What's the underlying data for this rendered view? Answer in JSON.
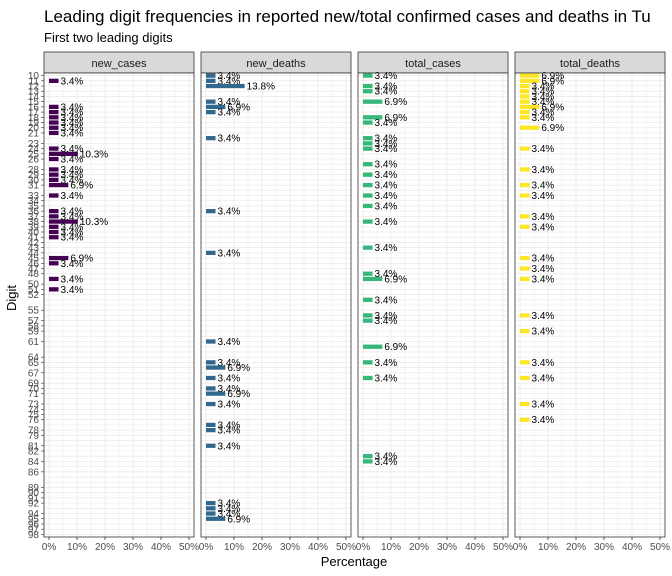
{
  "chart_data": {
    "type": "bar",
    "orientation": "horizontal",
    "title": "Leading digit frequencies in reported new/total confirmed cases and deaths in Tu",
    "subtitle": "First two leading digits",
    "xlabel": "Percentage",
    "ylabel": "Digit",
    "xlim": [
      0,
      50
    ],
    "x_ticks": [
      "0%",
      "10%",
      "20%",
      "30%",
      "40%",
      "50%"
    ],
    "grid": true,
    "categories": [
      "10",
      "11",
      "12",
      "13",
      "14",
      "15",
      "16",
      "17",
      "18",
      "19",
      "20",
      "21",
      "22",
      "23",
      "24",
      "25",
      "26",
      "27",
      "28",
      "29",
      "30",
      "31",
      "32",
      "33",
      "34",
      "35",
      "36",
      "37",
      "38",
      "39",
      "40",
      "41",
      "42",
      "43",
      "44",
      "45",
      "46",
      "47",
      "48",
      "49",
      "50",
      "51",
      "52",
      "53",
      "54",
      "55",
      "56",
      "57",
      "58",
      "59",
      "60",
      "61",
      "62",
      "63",
      "64",
      "65",
      "66",
      "67",
      "68",
      "69",
      "70",
      "71",
      "72",
      "73",
      "74",
      "75",
      "76",
      "77",
      "78",
      "79",
      "80",
      "81",
      "82",
      "83",
      "84",
      "85",
      "86",
      "87",
      "88",
      "89",
      "90",
      "91",
      "92",
      "93",
      "94",
      "95",
      "96",
      "97",
      "98"
    ],
    "y_tick_labels": [
      "10",
      "11",
      "12",
      "13",
      "14",
      "15",
      "16",
      "17",
      "18",
      "19",
      "20",
      "21",
      "23",
      "24",
      "25",
      "26",
      "28",
      "29",
      "30",
      "31",
      "33",
      "34",
      "35",
      "36",
      "37",
      "38",
      "39",
      "40",
      "41",
      "42",
      "43",
      "44",
      "45",
      "46",
      "47",
      "48",
      "50",
      "51",
      "52",
      "55",
      "57",
      "58",
      "59",
      "61",
      "64",
      "65",
      "67",
      "69",
      "70",
      "71",
      "73",
      "74",
      "75",
      "76",
      "78",
      "79",
      "81",
      "82",
      "84",
      "86",
      "89",
      "90",
      "91",
      "92",
      "94",
      "95",
      "96",
      "97",
      "98"
    ],
    "series": [
      {
        "name": "new_cases",
        "color": "#440154",
        "values": {
          "11": 3.4,
          "16": 3.4,
          "17": 3.4,
          "18": 3.4,
          "19": 3.4,
          "20": 3.4,
          "21": 3.4,
          "24": 3.4,
          "25": 10.3,
          "26": 3.4,
          "28": 3.4,
          "29": 3.4,
          "30": 3.4,
          "31": 6.9,
          "33": 3.4,
          "36": 3.4,
          "37": 3.4,
          "38": 10.3,
          "39": 3.4,
          "40": 3.4,
          "41": 3.4,
          "45": 6.9,
          "46": 3.4,
          "49": 3.4,
          "51": 3.4
        }
      },
      {
        "name": "new_deaths",
        "color": "#31688e",
        "values": {
          "10": 3.4,
          "11": 3.4,
          "12": 13.8,
          "15": 3.4,
          "16": 6.9,
          "17": 3.4,
          "22": 3.4,
          "36": 3.4,
          "44": 3.4,
          "61": 3.4,
          "65": 3.4,
          "66": 6.9,
          "68": 3.4,
          "70": 3.4,
          "71": 6.9,
          "73": 3.4,
          "77": 3.4,
          "78": 3.4,
          "81": 3.4,
          "92": 3.4,
          "93": 3.4,
          "94": 3.4,
          "95": 6.9
        }
      },
      {
        "name": "total_cases",
        "color": "#35b779",
        "values": {
          "10": 3.4,
          "12": 3.4,
          "13": 3.4,
          "15": 6.9,
          "18": 6.9,
          "19": 3.4,
          "22": 3.4,
          "23": 3.4,
          "24": 3.4,
          "27": 3.4,
          "29": 3.4,
          "31": 3.4,
          "33": 3.4,
          "35": 3.4,
          "38": 3.4,
          "43": 3.4,
          "48": 3.4,
          "49": 6.9,
          "53": 3.4,
          "56": 3.4,
          "57": 3.4,
          "62": 6.9,
          "65": 3.4,
          "68": 3.4,
          "83": 3.4,
          "84": 3.4
        }
      },
      {
        "name": "total_deaths",
        "color": "#fde725",
        "values": {
          "10": 6.9,
          "11": 6.9,
          "12": 3.4,
          "13": 3.4,
          "14": 3.4,
          "15": 3.4,
          "16": 6.9,
          "17": 3.4,
          "18": 3.4,
          "20": 6.9,
          "24": 3.4,
          "28": 3.4,
          "31": 3.4,
          "33": 3.4,
          "37": 3.4,
          "39": 3.4,
          "45": 3.4,
          "47": 3.4,
          "49": 3.4,
          "56": 3.4,
          "59": 3.4,
          "65": 3.4,
          "68": 3.4,
          "73": 3.4,
          "76": 3.4
        }
      }
    ]
  }
}
